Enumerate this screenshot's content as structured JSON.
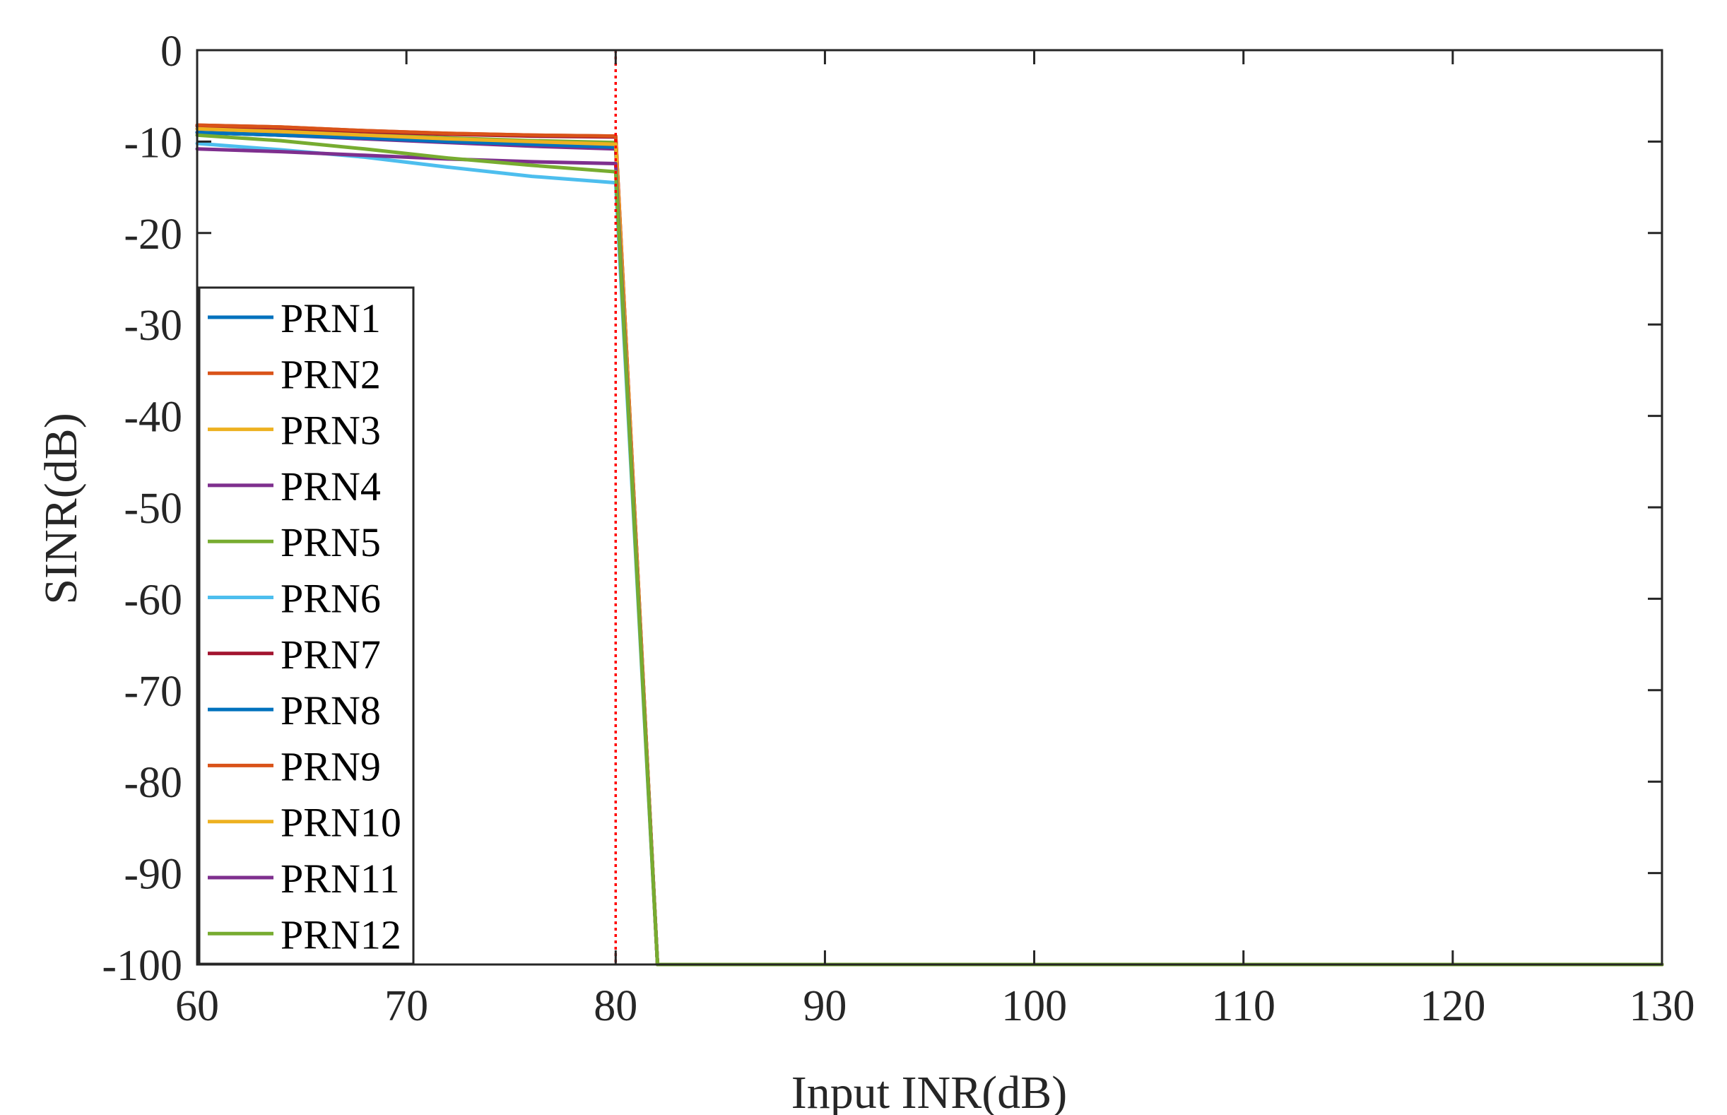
{
  "chart_data": {
    "type": "line",
    "title": "",
    "xlabel": "Input INR(dB)",
    "ylabel": "SINR(dB)",
    "xlim": [
      60,
      130
    ],
    "ylim": [
      -100,
      0
    ],
    "xticks": [
      60,
      70,
      80,
      90,
      100,
      110,
      120,
      130
    ],
    "yticks": [
      0,
      -10,
      -20,
      -30,
      -40,
      -50,
      -60,
      -70,
      -80,
      -90,
      -100
    ],
    "xtick_labels": [
      "60",
      "70",
      "80",
      "90",
      "100",
      "110",
      "120",
      "130"
    ],
    "ytick_labels": [
      "0",
      "-10",
      "-20",
      "-30",
      "-40",
      "-50",
      "-60",
      "-70",
      "-80",
      "-90",
      "-100"
    ],
    "grid": false,
    "legend_position": "lower left (inside)",
    "x": [
      60,
      64,
      68,
      72,
      76,
      80,
      82,
      90,
      100,
      110,
      120,
      130
    ],
    "series": [
      {
        "name": "PRN1",
        "color": "#0072BD",
        "values": [
          -9.0,
          -9.3,
          -9.6,
          -10.0,
          -10.3,
          -10.6,
          -100,
          -100,
          -100,
          -100,
          -100,
          -100
        ]
      },
      {
        "name": "PRN2",
        "color": "#D95319",
        "values": [
          -8.2,
          -8.4,
          -8.8,
          -9.1,
          -9.3,
          -9.4,
          -100,
          -100,
          -100,
          -100,
          -100,
          -100
        ]
      },
      {
        "name": "PRN3",
        "color": "#EDB120",
        "values": [
          -8.6,
          -8.9,
          -9.3,
          -9.7,
          -10.0,
          -10.3,
          -100,
          -100,
          -100,
          -100,
          -100,
          -100
        ]
      },
      {
        "name": "PRN4",
        "color": "#7E2F8E",
        "values": [
          -9.0,
          -9.3,
          -9.7,
          -10.1,
          -10.5,
          -10.8,
          -100,
          -100,
          -100,
          -100,
          -100,
          -100
        ]
      },
      {
        "name": "PRN5",
        "color": "#77AC30",
        "values": [
          -8.6,
          -8.8,
          -9.2,
          -9.6,
          -9.9,
          -10.1,
          -100,
          -100,
          -100,
          -100,
          -100,
          -100
        ]
      },
      {
        "name": "PRN6",
        "color": "#4DBEEE",
        "values": [
          -10.2,
          -10.9,
          -11.7,
          -12.8,
          -13.8,
          -14.5,
          -100,
          -100,
          -100,
          -100,
          -100,
          -100
        ]
      },
      {
        "name": "PRN7",
        "color": "#A2142F",
        "values": [
          -8.3,
          -8.5,
          -8.9,
          -9.2,
          -9.4,
          -9.5,
          -100,
          -100,
          -100,
          -100,
          -100,
          -100
        ]
      },
      {
        "name": "PRN8",
        "color": "#0072BD",
        "values": [
          -9.0,
          -9.3,
          -9.6,
          -10.0,
          -10.3,
          -10.6,
          -100,
          -100,
          -100,
          -100,
          -100,
          -100
        ]
      },
      {
        "name": "PRN9",
        "color": "#D95319",
        "values": [
          -8.2,
          -8.4,
          -8.8,
          -9.1,
          -9.3,
          -9.4,
          -100,
          -100,
          -100,
          -100,
          -100,
          -100
        ]
      },
      {
        "name": "PRN10",
        "color": "#EDB120",
        "values": [
          -8.6,
          -8.9,
          -9.3,
          -9.7,
          -10.0,
          -10.3,
          -100,
          -100,
          -100,
          -100,
          -100,
          -100
        ]
      },
      {
        "name": "PRN11",
        "color": "#7E2F8E",
        "values": [
          -10.8,
          -11.1,
          -11.5,
          -11.9,
          -12.2,
          -12.4,
          -100,
          -100,
          -100,
          -100,
          -100,
          -100
        ]
      },
      {
        "name": "PRN12",
        "color": "#77AC30",
        "values": [
          -9.3,
          -9.9,
          -10.8,
          -11.8,
          -12.6,
          -13.3,
          -100,
          -100,
          -100,
          -100,
          -100,
          -100
        ]
      }
    ],
    "annotations": [
      {
        "type": "vertical-line",
        "x": 80,
        "style": "dotted",
        "color": "#FF0000"
      }
    ]
  }
}
